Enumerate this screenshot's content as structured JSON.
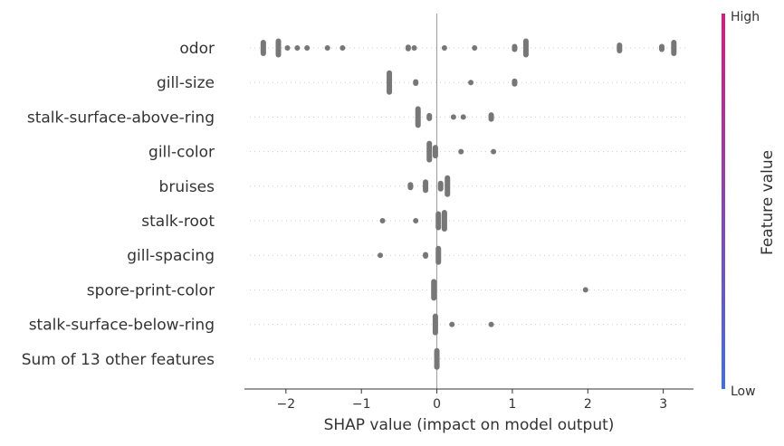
{
  "chart_data": {
    "type": "scatter",
    "subtype": "shap-beeswarm",
    "xlabel": "SHAP value (impact on model output)",
    "xlim": [
      -2.55,
      3.4
    ],
    "xticks": [
      -2,
      -1,
      0,
      1,
      2,
      3
    ],
    "xtick_labels": [
      "−2",
      "−1",
      "0",
      "1",
      "2",
      "3"
    ],
    "grid": false,
    "point_color": "#777777",
    "colorbar": {
      "label": "Feature value",
      "high_label": "High",
      "low_label": "Low",
      "high_color": "#d81b7e",
      "low_color": "#3f6fe0"
    },
    "features": [
      {
        "name": "odor",
        "points": [
          [
            -2.3,
            12
          ],
          [
            -2.1,
            14
          ],
          [
            -1.98,
            2
          ],
          [
            -1.85,
            2
          ],
          [
            -1.72,
            2
          ],
          [
            -1.45,
            1
          ],
          [
            -1.25,
            2
          ],
          [
            -0.38,
            5
          ],
          [
            -0.3,
            4
          ],
          [
            0.1,
            2
          ],
          [
            0.5,
            2
          ],
          [
            1.03,
            6
          ],
          [
            1.18,
            14
          ],
          [
            2.42,
            8
          ],
          [
            2.98,
            6
          ],
          [
            3.14,
            12
          ]
        ]
      },
      {
        "name": "gill-size",
        "points": [
          [
            -0.63,
            18
          ],
          [
            -0.28,
            5
          ],
          [
            0.45,
            4
          ],
          [
            1.03,
            6
          ]
        ]
      },
      {
        "name": "stalk-surface-above-ring",
        "points": [
          [
            -0.25,
            16
          ],
          [
            -0.1,
            6
          ],
          [
            0.22,
            2
          ],
          [
            0.35,
            4
          ],
          [
            0.72,
            7
          ]
        ]
      },
      {
        "name": "gill-color",
        "points": [
          [
            -0.1,
            16
          ],
          [
            -0.02,
            10
          ],
          [
            0.32,
            4
          ],
          [
            0.75,
            4
          ]
        ]
      },
      {
        "name": "bruises",
        "points": [
          [
            -0.35,
            6
          ],
          [
            -0.15,
            10
          ],
          [
            0.05,
            8
          ],
          [
            0.14,
            16
          ]
        ]
      },
      {
        "name": "stalk-root",
        "points": [
          [
            -0.72,
            3
          ],
          [
            -0.28,
            2
          ],
          [
            0.02,
            14
          ],
          [
            0.1,
            16
          ]
        ]
      },
      {
        "name": "gill-spacing",
        "points": [
          [
            -0.75,
            2
          ],
          [
            -0.15,
            5
          ],
          [
            0.02,
            14
          ]
        ]
      },
      {
        "name": "spore-print-color",
        "points": [
          [
            -0.04,
            16
          ],
          [
            1.97,
            2
          ]
        ]
      },
      {
        "name": "stalk-surface-below-ring",
        "points": [
          [
            -0.02,
            16
          ],
          [
            0.2,
            2
          ],
          [
            0.72,
            2
          ]
        ]
      },
      {
        "name": "Sum of 13 other features",
        "points": [
          [
            0.0,
            16
          ]
        ]
      }
    ]
  }
}
